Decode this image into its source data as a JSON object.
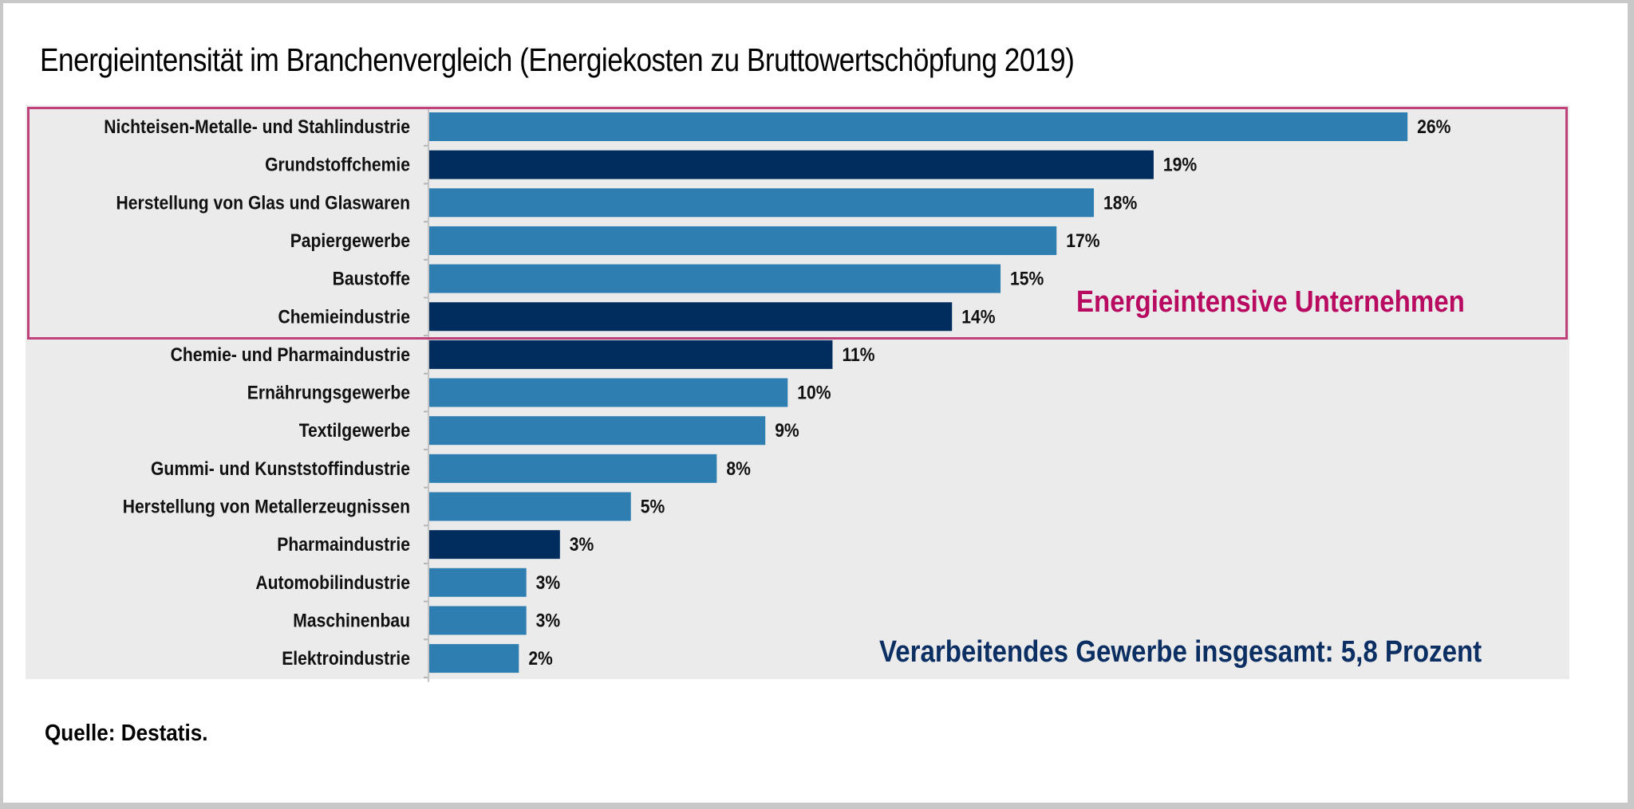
{
  "chart_data": {
    "type": "bar",
    "orientation": "horizontal",
    "title": "Energieintensität im Branchenvergleich (Energiekosten zu Bruttowertschöpfung 2019)",
    "xlabel": "",
    "ylabel": "",
    "unit": "%",
    "xlim": [
      0,
      30
    ],
    "grid": false,
    "categories": [
      "Nichteisen-Metalle- und Stahlindustrie",
      "Grundstoffchemie",
      "Herstellung von Glas und Glaswaren",
      "Papiergewerbe",
      "Baustoffe",
      "Chemieindustrie",
      "Chemie- und Pharmaindustrie",
      "Ernährungsgewerbe",
      "Textilgewerbe",
      "Gummi- und Kunststoffindustrie",
      "Herstellung von Metallerzeugnissen",
      "Pharmaindustrie",
      "Automobilindustrie",
      "Maschinenbau",
      "Elektroindustrie"
    ],
    "values": [
      26.2,
      19.4,
      17.8,
      16.8,
      15.3,
      14.0,
      10.8,
      9.6,
      9.0,
      7.7,
      5.4,
      3.5,
      2.6,
      2.6,
      2.4
    ],
    "data_labels": [
      "26%",
      "19%",
      "18%",
      "17%",
      "15%",
      "14%",
      "11%",
      "10%",
      "9%",
      "8%",
      "5%",
      "3%",
      "3%",
      "3%",
      "2%"
    ],
    "bar_style": [
      "light",
      "dark",
      "light",
      "light",
      "light",
      "dark",
      "dark",
      "light",
      "light",
      "light",
      "light",
      "dark",
      "light",
      "light",
      "light"
    ],
    "colors": {
      "light": "#2e7eb1",
      "dark": "#002d5d",
      "highlight_border": "#c0407a",
      "plot_background": "#ebebeb"
    },
    "highlight_group": {
      "label": "Energieintensive Unternehmen",
      "categories_count": 6,
      "color": "#b80a61"
    },
    "annotations": [
      {
        "text": "Energieintensive Unternehmen",
        "color": "#b80a61",
        "position": "inside highlight box, right"
      },
      {
        "text": "Verarbeitendes Gewerbe insgesamt: 5,8 Prozent",
        "color": "#0b2e63",
        "position": "bottom-right"
      }
    ],
    "legend": null,
    "source": "Quelle: Destatis."
  }
}
